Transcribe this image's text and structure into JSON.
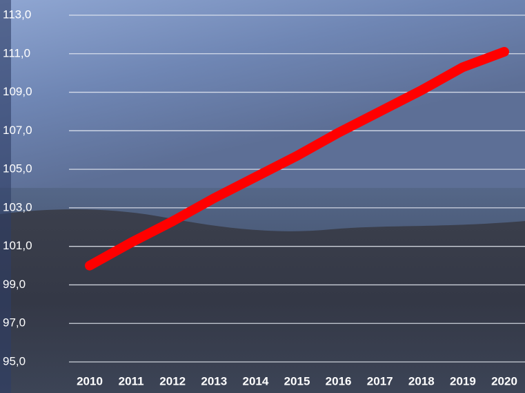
{
  "chart_data": {
    "type": "line",
    "categories": [
      "2010",
      "2011",
      "2012",
      "2013",
      "2014",
      "2015",
      "2016",
      "2017",
      "2018",
      "2019",
      "2020"
    ],
    "series": [
      {
        "color": "#ff0000",
        "values": [
          100.0,
          101.2,
          102.3,
          103.5,
          104.6,
          105.7,
          106.9,
          108.0,
          109.1,
          110.3,
          111.1
        ]
      }
    ],
    "ylim": [
      95,
      113
    ],
    "yticks": [
      {
        "value": 95,
        "label": "95,0"
      },
      {
        "value": 97,
        "label": "97,0"
      },
      {
        "value": 99,
        "label": "99,0"
      },
      {
        "value": 101,
        "label": "101,0"
      },
      {
        "value": 103,
        "label": "103,0"
      },
      {
        "value": 105,
        "label": "105,0"
      },
      {
        "value": 107,
        "label": "107,0"
      },
      {
        "value": 109,
        "label": "109,0"
      },
      {
        "value": 111,
        "label": "111,0"
      },
      {
        "value": 113,
        "label": "113,0"
      }
    ],
    "grid": true
  }
}
